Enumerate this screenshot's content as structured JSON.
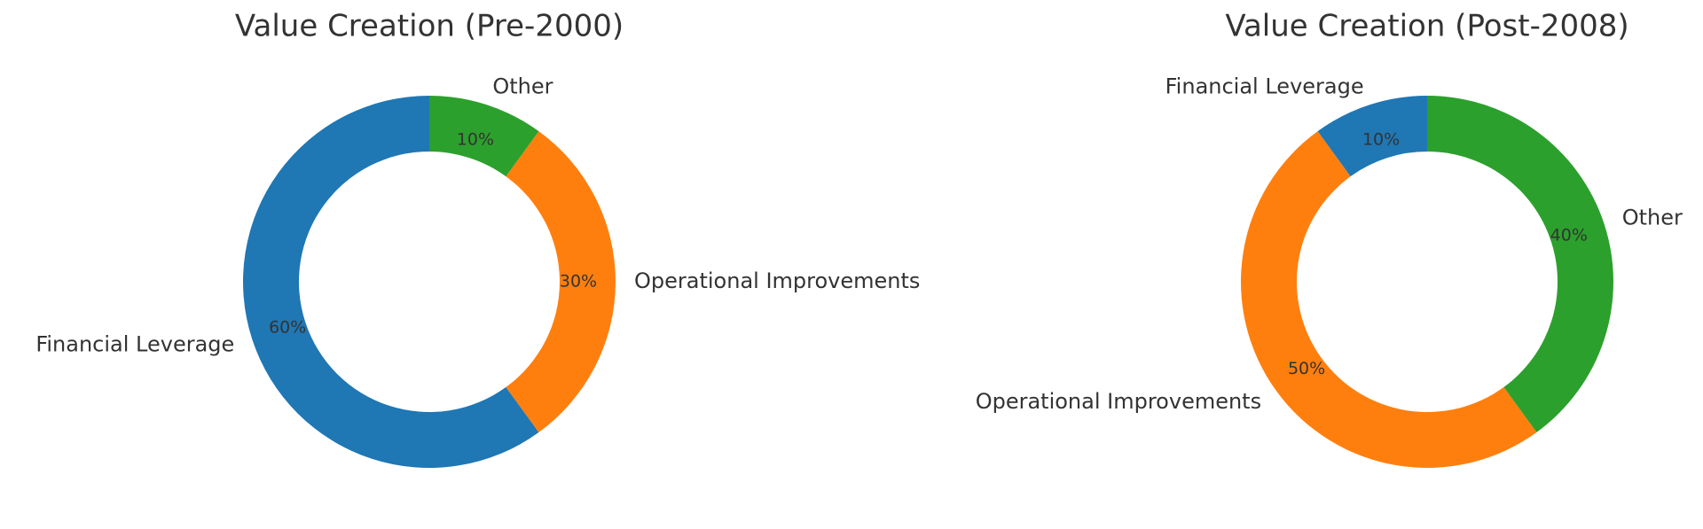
{
  "chart_data": [
    {
      "type": "donut",
      "title": "Value Creation (Pre-2000)",
      "categories": [
        "Financial Leverage",
        "Operational Improvements",
        "Other"
      ],
      "values": [
        60,
        30,
        10
      ],
      "value_labels": [
        "60%",
        "30%",
        "10%"
      ],
      "colors": [
        "#1f77b4",
        "#ff7f0e",
        "#2ca02c"
      ]
    },
    {
      "type": "donut",
      "title": "Value Creation (Post-2008)",
      "categories": [
        "Financial Leverage",
        "Operational Improvements",
        "Other"
      ],
      "values": [
        10,
        50,
        40
      ],
      "value_labels": [
        "10%",
        "50%",
        "40%"
      ],
      "colors": [
        "#1f77b4",
        "#ff7f0e",
        "#2ca02c"
      ]
    }
  ]
}
